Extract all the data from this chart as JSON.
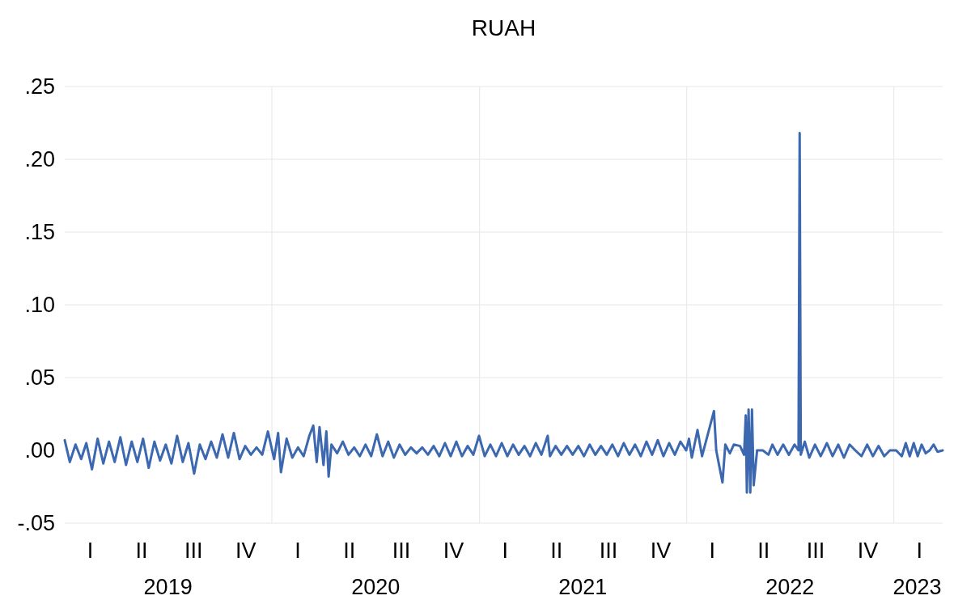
{
  "chart_data": {
    "type": "line",
    "title": "RUAH",
    "xlim": [
      "2019-01-01",
      "2023-03-28"
    ],
    "xticks": [
      {
        "value": "2019-07-02",
        "label": "2019"
      },
      {
        "value": "2020-01-01",
        "label": null
      },
      {
        "value": "2020-07-02",
        "label": "2020"
      },
      {
        "value": "2021-01-01",
        "label": null
      },
      {
        "value": "2021-07-02",
        "label": "2021"
      },
      {
        "value": "2022-01-01",
        "label": null
      },
      {
        "value": "2022-07-02",
        "label": "2022"
      },
      {
        "value": "2023-01-01",
        "label": null
      },
      {
        "value": "2023-02-11",
        "label": "2023"
      }
    ],
    "annotations": [
      "I",
      "II",
      "III",
      "IV",
      "I",
      "II",
      "III",
      "IV",
      "I",
      "II",
      "III",
      "IV",
      "I",
      "II",
      "III",
      "IV",
      "I"
    ],
    "ylim": [
      -0.05,
      0.25
    ],
    "yticks": [
      {
        "value": -0.05,
        "label": "-.05"
      },
      {
        "value": 0,
        "label": ".00"
      },
      {
        "value": 0.05,
        "label": ".05"
      },
      {
        "value": 0.1,
        "label": ".10"
      },
      {
        "value": 0.15,
        "label": ".15"
      },
      {
        "value": 0.2,
        "label": ".20"
      },
      {
        "value": 0.25,
        "label": ".25"
      }
    ],
    "grid": true,
    "series": [
      {
        "color": "#3c68b0",
        "x": [
          "2019-01-01",
          "2019-01-10",
          "2019-01-20",
          "2019-01-30",
          "2019-02-08",
          "2019-02-18",
          "2019-02-28",
          "2019-03-10",
          "2019-03-20",
          "2019-03-30",
          "2019-04-09",
          "2019-04-19",
          "2019-04-29",
          "2019-05-09",
          "2019-05-19",
          "2019-05-29",
          "2019-06-08",
          "2019-06-18",
          "2019-06-28",
          "2019-07-08",
          "2019-07-18",
          "2019-07-28",
          "2019-08-07",
          "2019-08-17",
          "2019-08-27",
          "2019-09-06",
          "2019-09-16",
          "2019-09-26",
          "2019-10-06",
          "2019-10-16",
          "2019-10-26",
          "2019-11-05",
          "2019-11-15",
          "2019-11-25",
          "2019-12-05",
          "2019-12-15",
          "2019-12-25",
          "2020-01-05",
          "2020-01-12",
          "2020-01-17",
          "2020-01-27",
          "2020-02-06",
          "2020-02-16",
          "2020-02-26",
          "2020-03-07",
          "2020-03-14",
          "2020-03-20",
          "2020-03-25",
          "2020-04-01",
          "2020-04-06",
          "2020-04-10",
          "2020-04-15",
          "2020-04-25",
          "2020-05-05",
          "2020-05-15",
          "2020-05-25",
          "2020-06-04",
          "2020-06-14",
          "2020-06-24",
          "2020-07-04",
          "2020-07-14",
          "2020-07-24",
          "2020-08-03",
          "2020-08-13",
          "2020-08-23",
          "2020-09-02",
          "2020-09-12",
          "2020-09-22",
          "2020-10-02",
          "2020-10-12",
          "2020-10-22",
          "2020-11-01",
          "2020-11-11",
          "2020-11-21",
          "2020-12-01",
          "2020-12-11",
          "2020-12-21",
          "2020-12-31",
          "2021-01-10",
          "2021-01-20",
          "2021-01-30",
          "2021-02-09",
          "2021-02-19",
          "2021-03-01",
          "2021-03-11",
          "2021-03-21",
          "2021-03-31",
          "2021-04-10",
          "2021-04-20",
          "2021-05-01",
          "2021-05-05",
          "2021-05-15",
          "2021-05-25",
          "2021-06-04",
          "2021-06-14",
          "2021-06-24",
          "2021-07-04",
          "2021-07-14",
          "2021-07-24",
          "2021-08-03",
          "2021-08-13",
          "2021-08-23",
          "2021-09-02",
          "2021-09-12",
          "2021-09-22",
          "2021-10-02",
          "2021-10-12",
          "2021-10-22",
          "2021-11-01",
          "2021-11-11",
          "2021-11-21",
          "2021-12-01",
          "2021-12-11",
          "2021-12-21",
          "2021-12-31",
          "2022-01-05",
          "2022-01-10",
          "2022-01-20",
          "2022-01-28",
          "2022-02-18",
          "2022-02-22",
          "2022-03-05",
          "2022-03-10",
          "2022-03-18",
          "2022-03-25",
          "2022-04-05",
          "2022-04-12",
          "2022-04-15",
          "2022-04-17",
          "2022-04-20",
          "2022-04-23",
          "2022-04-26",
          "2022-04-29",
          "2022-05-05",
          "2022-05-15",
          "2022-05-25",
          "2022-06-01",
          "2022-06-10",
          "2022-06-20",
          "2022-06-30",
          "2022-07-10",
          "2022-07-17",
          "2022-07-19",
          "2022-07-21",
          "2022-07-28",
          "2022-08-05",
          "2022-08-15",
          "2022-08-25",
          "2022-09-05",
          "2022-09-15",
          "2022-09-25",
          "2022-10-05",
          "2022-10-15",
          "2022-10-25",
          "2022-11-05",
          "2022-11-15",
          "2022-11-25",
          "2022-12-05",
          "2022-12-15",
          "2022-12-25",
          "2023-01-05",
          "2023-01-15",
          "2023-01-22",
          "2023-01-29",
          "2023-02-05",
          "2023-02-12",
          "2023-02-19",
          "2023-02-26",
          "2023-03-05",
          "2023-03-12",
          "2023-03-19",
          "2023-03-28"
        ],
        "values": [
          0.007,
          -0.008,
          0.004,
          -0.006,
          0.005,
          -0.013,
          0.008,
          -0.009,
          0.006,
          -0.008,
          0.009,
          -0.01,
          0.006,
          -0.008,
          0.008,
          -0.012,
          0.006,
          -0.007,
          0.004,
          -0.009,
          0.01,
          -0.008,
          0.005,
          -0.016,
          0.004,
          -0.006,
          0.006,
          -0.005,
          0.011,
          -0.005,
          0.012,
          -0.006,
          0.003,
          -0.003,
          0.002,
          -0.003,
          0.013,
          -0.006,
          0.012,
          -0.015,
          0.008,
          -0.005,
          0.002,
          -0.004,
          0.01,
          0.017,
          -0.008,
          0.016,
          -0.01,
          0.013,
          -0.018,
          0.004,
          -0.002,
          0.006,
          -0.003,
          0.002,
          -0.004,
          0.004,
          -0.004,
          0.011,
          -0.004,
          0.006,
          -0.005,
          0.004,
          -0.003,
          0.002,
          -0.002,
          0.002,
          -0.003,
          0.003,
          -0.004,
          0.005,
          -0.004,
          0.006,
          -0.004,
          0.003,
          -0.003,
          0.01,
          -0.004,
          0.004,
          -0.004,
          0.005,
          -0.004,
          0.004,
          -0.003,
          0.003,
          -0.004,
          0.005,
          -0.003,
          0.01,
          -0.004,
          0.003,
          -0.003,
          0.003,
          -0.003,
          0.003,
          -0.004,
          0.004,
          -0.003,
          0.003,
          -0.003,
          0.004,
          -0.004,
          0.005,
          -0.003,
          0.004,
          -0.004,
          0.006,
          -0.003,
          0.007,
          -0.004,
          0.005,
          -0.003,
          0.006,
          0.0,
          0.008,
          -0.005,
          0.014,
          -0.004,
          0.027,
          0.0,
          -0.022,
          0.004,
          -0.002,
          0.004,
          0.003,
          -0.003,
          0.024,
          -0.029,
          0.028,
          -0.029,
          0.028,
          -0.024,
          0.0,
          0.0,
          -0.003,
          0.004,
          -0.003,
          0.004,
          -0.003,
          0.004,
          0.0,
          0.218,
          -0.003,
          0.006,
          -0.005,
          0.004,
          -0.004,
          0.005,
          -0.004,
          0.004,
          -0.005,
          0.004,
          0.0,
          -0.004,
          0.004,
          -0.004,
          0.003,
          -0.004,
          0.0,
          0.0,
          -0.004,
          0.005,
          -0.004,
          0.005,
          -0.004,
          0.004,
          -0.002,
          0.0,
          0.004,
          -0.001,
          0.0
        ]
      }
    ]
  }
}
